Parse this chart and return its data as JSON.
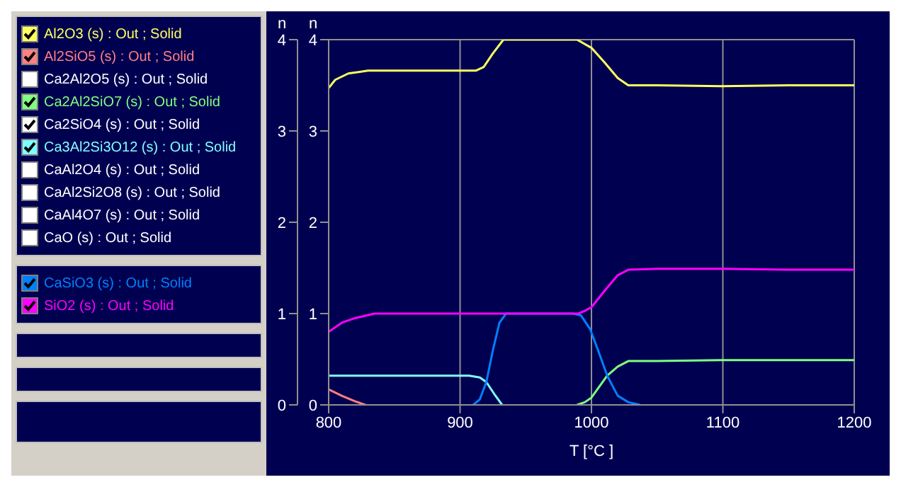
{
  "chart_data": {
    "type": "line",
    "xlabel": "T [°C ]",
    "ylabel": "n",
    "y2label": "n",
    "xlim": [
      800,
      1200
    ],
    "xticks": [
      800,
      900,
      1000,
      1100,
      1200
    ],
    "ylim": [
      0,
      4
    ],
    "yticks": [
      0,
      1,
      2,
      3,
      4
    ],
    "y2lim": [
      0,
      4
    ],
    "y2ticks": [
      0,
      1,
      2,
      3,
      4
    ],
    "grid": true,
    "legend": "left",
    "series": [
      {
        "name": "Al2O3 (s) : Out ; Solid",
        "color": "#ffff60",
        "x": [
          800,
          805,
          815,
          830,
          912,
          918,
          925,
          933,
          989,
          1000,
          1010,
          1020,
          1028,
          1050,
          1100,
          1150,
          1200
        ],
        "values": [
          3.47,
          3.56,
          3.63,
          3.66,
          3.66,
          3.7,
          3.85,
          4,
          4,
          3.91,
          3.75,
          3.58,
          3.5,
          3.5,
          3.49,
          3.5,
          3.5
        ]
      },
      {
        "name": "Al2SiO5 (s) : Out ; Solid",
        "color": "#ff8080",
        "x": [
          800,
          810,
          820,
          828
        ],
        "values": [
          0.17,
          0.1,
          0.04,
          0
        ]
      },
      {
        "name": "Ca2Al2O5 (s) : Out ; Solid",
        "color": "#ffffff"
      },
      {
        "name": "Ca2Al2SiO7 (s) : Out ; Solid",
        "color": "#80ff80",
        "x": [
          989,
          995,
          1000,
          1006,
          1012,
          1020,
          1028,
          1050,
          1100,
          1150,
          1200
        ],
        "values": [
          0,
          0.03,
          0.08,
          0.2,
          0.32,
          0.42,
          0.48,
          0.48,
          0.49,
          0.49,
          0.49
        ]
      },
      {
        "name": "Ca2SiO4 (s) : Out ; Solid",
        "color": "#ffffff",
        "values": [
          null
        ]
      },
      {
        "name": "Ca3Al2Si3O12 (s) : Out ; Solid",
        "color": "#80ffff",
        "x": [
          800,
          907,
          915,
          920,
          926,
          932
        ],
        "values": [
          0.32,
          0.32,
          0.3,
          0.25,
          0.12,
          0
        ]
      },
      {
        "name": "CaAl2O4 (s) : Out ; Solid",
        "color": "#ffffff"
      },
      {
        "name": "CaAl2Si2O8 (s) : Out ; Solid",
        "color": "#ffffff"
      },
      {
        "name": "CaAl4O7 (s) : Out ; Solid",
        "color": "#ffffff"
      },
      {
        "name": "CaO (s) : Out ; Solid",
        "color": "#ffffff"
      },
      {
        "name": "CaSiO3 (s) : Out ; Solid",
        "color": "#0080ff",
        "x": [
          910,
          915,
          920,
          925,
          930,
          935,
          986,
          992,
          999,
          1005,
          1012,
          1020,
          1028,
          1037
        ],
        "values": [
          0,
          0.06,
          0.25,
          0.6,
          0.9,
          1,
          1,
          0.98,
          0.83,
          0.6,
          0.32,
          0.1,
          0.03,
          0
        ]
      },
      {
        "name": "SiO2 (s) : Out ; Solid",
        "color": "#ff00ff",
        "x": [
          800,
          810,
          820,
          835,
          990,
          995,
          1000,
          1010,
          1020,
          1028,
          1050,
          1100,
          1150,
          1200
        ],
        "values": [
          0.8,
          0.9,
          0.95,
          1,
          1,
          1.03,
          1.07,
          1.25,
          1.42,
          1.48,
          1.49,
          1.49,
          1.48,
          1.48
        ]
      }
    ]
  }
}
